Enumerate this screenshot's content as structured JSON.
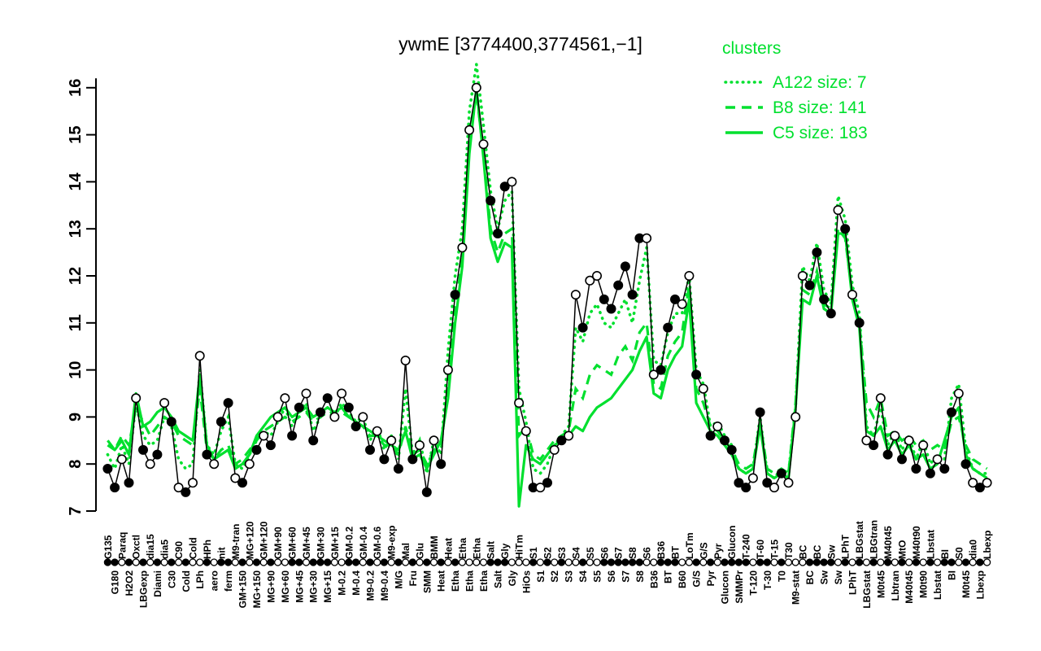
{
  "title": "ywmE [3774400,3774561,−1]",
  "colors": {
    "cluster_green": "#00e02e",
    "profile_black": "#000000",
    "open_marker_fill": "#ffffff"
  },
  "legend": {
    "header": "clusters",
    "entries": [
      {
        "label": "A122 size: 7",
        "style": "dotted"
      },
      {
        "label": "B8 size: 141",
        "style": "dashed"
      },
      {
        "label": "C5 size: 183",
        "style": "solid"
      }
    ]
  },
  "chart_data": {
    "type": "line",
    "title": "ywmE [3774400,3774561,−1]",
    "xlabel": "",
    "ylabel": "",
    "ylim": [
      7,
      16.2
    ],
    "yticks": [
      7,
      8,
      9,
      10,
      11,
      12,
      13,
      14,
      15,
      16
    ],
    "grid": false,
    "legend_position": "top-right",
    "categories": [
      "G135",
      "G180",
      "Paraq",
      "H2O2",
      "Oxctl",
      "LBGexp",
      "dia15",
      "Diami",
      "dia5",
      "C30",
      "C90",
      "Cold",
      "Cold",
      "LPh",
      "HPh",
      "aero",
      "nit",
      "ferm",
      "M9-tran",
      "GM+150",
      "MG+120",
      "MG+150",
      "GM+120",
      "MG+90",
      "GM+90",
      "MG+60",
      "GM+60",
      "MG+45",
      "GM+45",
      "MG+30",
      "GM+30",
      "MG+15",
      "GM+15",
      "M-0.2",
      "GM-0.2",
      "M-0.4",
      "GM-0.4",
      "M9-0.2",
      "GM-0.6",
      "M9-0.4",
      "M9-exp",
      "M/G",
      "Mal",
      "Fru",
      "Glu",
      "SMM",
      "BMM",
      "Heat",
      "Heat",
      "Etha",
      "Etha",
      "Etha",
      "Etha",
      "Etha",
      "Salt",
      "Salt",
      "Gly",
      "Gly",
      "HiTm",
      "HiOs",
      "S1",
      "S1",
      "S2",
      "S2",
      "S3",
      "S3",
      "S4",
      "S4",
      "S5",
      "S5",
      "S6",
      "S6",
      "S7",
      "S7",
      "S8",
      "S8",
      "S6",
      "B36",
      "B36",
      "BT",
      "BT",
      "B60",
      "LoTm",
      "G/S",
      "G/S",
      "Pyr",
      "Pyr",
      "Glucon",
      "Glucon",
      "SMMPr",
      "T-240",
      "T-120",
      "T-60",
      "T-30",
      "T-15",
      "T0",
      "T30",
      "M9-stat",
      "BC",
      "BC",
      "BC",
      "Sw",
      "Sw",
      "Sw",
      "LPhT",
      "LPhT",
      "LBGstat",
      "LBGstat",
      "LBGtran",
      "M0t45",
      "M40t45",
      "Lbtran",
      "MtO",
      "M40t45",
      "M40t90",
      "M0t90",
      "Lbstat",
      "Lbstat",
      "BI",
      "BI",
      "S0",
      "M0t45",
      "dia0",
      "Lbexp",
      "Lbexp"
    ],
    "markers": [
      "f",
      "f",
      "o",
      "f",
      "o",
      "f",
      "o",
      "f",
      "o",
      "f",
      "o",
      "f",
      "o",
      "o",
      "f",
      "o",
      "f",
      "f",
      "o",
      "f",
      "o",
      "f",
      "o",
      "f",
      "o",
      "o",
      "f",
      "f",
      "o",
      "f",
      "f",
      "f",
      "o",
      "o",
      "f",
      "f",
      "o",
      "f",
      "o",
      "f",
      "o",
      "f",
      "o",
      "f",
      "o",
      "f",
      "o",
      "f",
      "o",
      "f",
      "o",
      "o",
      "o",
      "o",
      "f",
      "f",
      "f",
      "o",
      "o",
      "o",
      "f",
      "o",
      "f",
      "o",
      "f",
      "o",
      "o",
      "f",
      "o",
      "o",
      "f",
      "f",
      "f",
      "f",
      "f",
      "f",
      "o",
      "o",
      "f",
      "f",
      "f",
      "o",
      "o",
      "f",
      "o",
      "f",
      "o",
      "f",
      "f",
      "f",
      "f",
      "o",
      "f",
      "f",
      "o",
      "f",
      "o",
      "o",
      "o",
      "f",
      "f",
      "f",
      "f",
      "o",
      "f",
      "o",
      "f",
      "o",
      "f",
      "o",
      "f",
      "o",
      "f",
      "o",
      "f",
      "o",
      "f",
      "o",
      "f",
      "f",
      "o",
      "f",
      "o",
      "f",
      "o"
    ],
    "series": [
      {
        "name": "profile",
        "color": "#000000",
        "style": "solid-with-markers",
        "values": [
          7.9,
          7.5,
          8.1,
          7.6,
          9.4,
          8.3,
          8.0,
          8.2,
          9.3,
          8.9,
          7.5,
          7.4,
          7.6,
          10.3,
          8.2,
          8.0,
          8.9,
          9.3,
          7.7,
          7.6,
          8.0,
          8.3,
          8.6,
          8.4,
          9.0,
          9.4,
          8.6,
          9.2,
          9.5,
          8.5,
          9.1,
          9.4,
          9.0,
          9.5,
          9.2,
          8.8,
          9.0,
          8.3,
          8.7,
          8.1,
          8.5,
          7.9,
          10.2,
          8.1,
          8.4,
          7.4,
          8.5,
          8.0,
          10.0,
          11.6,
          12.6,
          15.1,
          16.0,
          14.8,
          13.6,
          12.9,
          13.9,
          14.0,
          9.3,
          8.7,
          7.5,
          7.5,
          7.6,
          8.3,
          8.5,
          8.6,
          11.6,
          10.9,
          11.9,
          12.0,
          11.5,
          11.3,
          11.8,
          12.2,
          11.6,
          12.8,
          12.8,
          9.9,
          10.0,
          10.9,
          11.5,
          11.4,
          12.0,
          9.9,
          9.6,
          8.6,
          8.8,
          8.5,
          8.3,
          7.6,
          7.5,
          7.7,
          9.1,
          7.6,
          7.5,
          7.8,
          7.6,
          9.0,
          12.0,
          11.8,
          12.5,
          11.5,
          11.2,
          13.4,
          13.0,
          11.6,
          11.0,
          8.5,
          8.4,
          9.4,
          8.2,
          8.6,
          8.1,
          8.5,
          7.9,
          8.4,
          7.8,
          8.1,
          7.9,
          9.1,
          9.5,
          8.0,
          7.6,
          7.5,
          7.6
        ]
      },
      {
        "name": "A122",
        "color": "#00e02e",
        "style": "dotted",
        "values": [
          8.2,
          7.9,
          8.4,
          8.0,
          9.3,
          8.6,
          8.4,
          8.5,
          9.0,
          8.8,
          8.1,
          7.9,
          8.0,
          10.0,
          8.4,
          8.2,
          8.7,
          9.0,
          8.0,
          7.9,
          8.2,
          8.5,
          8.7,
          8.6,
          8.9,
          9.2,
          8.8,
          9.1,
          9.3,
          8.7,
          9.0,
          9.2,
          9.0,
          9.3,
          9.1,
          8.9,
          9.0,
          8.5,
          8.8,
          8.3,
          8.6,
          8.1,
          9.6,
          8.2,
          8.5,
          7.8,
          8.5,
          8.2,
          10.4,
          12.0,
          13.0,
          15.5,
          16.5,
          15.2,
          13.8,
          13.0,
          13.6,
          13.8,
          9.6,
          8.9,
          7.9,
          7.8,
          8.0,
          8.4,
          8.6,
          8.8,
          10.9,
          10.6,
          11.2,
          11.4,
          11.0,
          10.9,
          11.2,
          11.5,
          11.0,
          11.9,
          12.6,
          10.2,
          10.1,
          10.8,
          11.2,
          11.2,
          12.0,
          10.0,
          9.7,
          8.8,
          8.9,
          8.6,
          8.4,
          7.9,
          7.8,
          7.9,
          9.0,
          7.8,
          7.7,
          7.9,
          7.8,
          9.2,
          12.2,
          11.9,
          12.7,
          11.7,
          11.4,
          13.7,
          13.2,
          11.8,
          11.2,
          8.8,
          8.6,
          9.2,
          8.4,
          8.7,
          8.3,
          8.6,
          8.1,
          8.5,
          8.0,
          8.2,
          8.1,
          9.4,
          9.7,
          8.3,
          7.9,
          7.8,
          7.8
        ]
      },
      {
        "name": "B8",
        "color": "#00e02e",
        "style": "dashed",
        "values": [
          8.5,
          8.3,
          8.6,
          8.4,
          9.2,
          8.9,
          8.6,
          8.8,
          9.0,
          8.9,
          8.6,
          8.5,
          8.4,
          9.6,
          8.3,
          8.1,
          8.3,
          8.4,
          8.0,
          8.1,
          8.3,
          8.5,
          8.7,
          8.8,
          8.9,
          9.0,
          8.9,
          9.0,
          9.1,
          8.9,
          9.0,
          9.1,
          9.0,
          9.1,
          9.0,
          8.9,
          8.8,
          8.6,
          8.6,
          8.4,
          8.4,
          8.2,
          8.8,
          8.2,
          8.3,
          8.0,
          8.3,
          8.4,
          9.6,
          11.2,
          12.4,
          14.8,
          15.9,
          14.6,
          13.0,
          12.5,
          12.9,
          13.0,
          8.6,
          8.8,
          8.2,
          8.1,
          8.3,
          8.5,
          8.6,
          8.7,
          9.6,
          9.4,
          9.9,
          10.1,
          10.0,
          9.9,
          10.3,
          10.5,
          10.2,
          10.8,
          11.0,
          9.7,
          9.6,
          10.3,
          10.6,
          10.8,
          11.8,
          9.6,
          9.3,
          8.8,
          8.7,
          8.5,
          8.3,
          8.0,
          7.9,
          8.0,
          8.9,
          7.9,
          7.8,
          7.9,
          7.8,
          9.3,
          11.7,
          11.6,
          12.1,
          11.4,
          11.3,
          13.0,
          12.8,
          11.6,
          11.0,
          9.3,
          9.0,
          9.4,
          8.6,
          8.7,
          8.5,
          8.6,
          8.4,
          8.5,
          8.3,
          8.4,
          8.3,
          8.9,
          9.0,
          8.4,
          8.1,
          8.0,
          7.9
        ]
      },
      {
        "name": "C5",
        "color": "#00e02e",
        "style": "solid",
        "values": [
          8.4,
          8.3,
          8.5,
          8.2,
          9.5,
          8.8,
          8.9,
          9.1,
          9.2,
          9.0,
          8.7,
          8.6,
          8.5,
          9.9,
          8.4,
          8.1,
          8.2,
          8.3,
          7.9,
          8.0,
          8.2,
          8.6,
          8.8,
          9.0,
          9.1,
          9.2,
          9.0,
          9.1,
          9.2,
          9.0,
          9.1,
          9.2,
          9.1,
          9.2,
          9.0,
          8.9,
          8.8,
          8.7,
          8.6,
          8.5,
          8.4,
          8.3,
          8.7,
          8.1,
          8.2,
          7.9,
          8.2,
          8.5,
          9.4,
          11.0,
          12.2,
          14.6,
          16.0,
          14.5,
          12.8,
          12.3,
          12.7,
          12.6,
          7.1,
          8.4,
          8.1,
          8.0,
          8.2,
          8.4,
          8.5,
          8.6,
          8.8,
          8.7,
          9.0,
          9.2,
          9.3,
          9.4,
          9.6,
          9.8,
          10.0,
          10.4,
          10.7,
          9.5,
          9.4,
          10.0,
          10.3,
          10.5,
          11.5,
          9.3,
          9.0,
          8.7,
          8.6,
          8.4,
          8.2,
          7.9,
          7.8,
          7.9,
          8.8,
          7.8,
          7.7,
          7.8,
          7.7,
          9.2,
          11.5,
          11.4,
          12.0,
          11.3,
          11.2,
          12.9,
          12.9,
          11.5,
          10.9,
          8.7,
          8.6,
          8.8,
          8.3,
          8.5,
          8.2,
          8.4,
          8.1,
          8.2,
          7.9,
          8.0,
          8.5,
          9.0,
          9.2,
          8.2,
          7.9,
          7.8,
          7.7
        ]
      }
    ]
  }
}
